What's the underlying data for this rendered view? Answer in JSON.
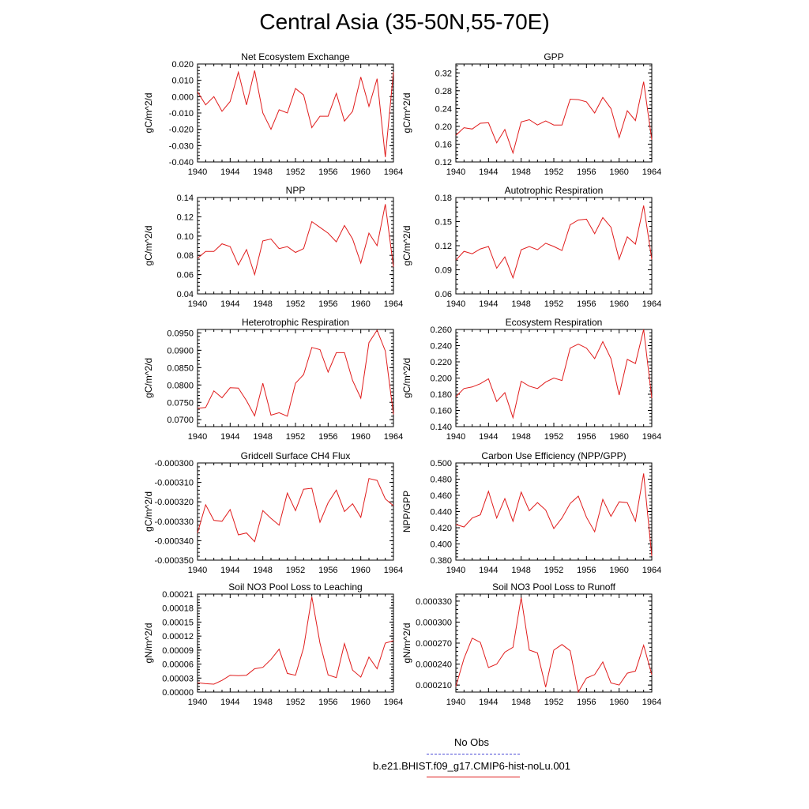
{
  "title": "Central Asia (35-50N,55-70E)",
  "legend": {
    "noobs_label": "No Obs",
    "run_label": "b.e21.BHIST.f09_g17.CMIP6-hist-noLu.001",
    "noobs_color": "#4b4bd6",
    "run_color": "#e01c1c"
  },
  "chart_data": [
    {
      "type": "line",
      "title": "Net Ecosystem Exchange",
      "ylabel": "gC/m^2/d",
      "xlabel": "",
      "xlim": [
        1940,
        1964
      ],
      "ylim": [
        -0.04,
        0.02
      ],
      "xticks": [
        "1940",
        "1944",
        "1948",
        "1952",
        "1956",
        "1960",
        "1964"
      ],
      "yticks": [
        "-0.040",
        "-0.030",
        "-0.020",
        "-0.010",
        "0.000",
        "0.010",
        "0.020"
      ],
      "series": [
        {
          "color": "#e01c1c",
          "x": [
            1940,
            1941,
            1942,
            1943,
            1944,
            1945,
            1946,
            1947,
            1948,
            1949,
            1950,
            1951,
            1952,
            1953,
            1954,
            1955,
            1956,
            1957,
            1958,
            1959,
            1960,
            1961,
            1962,
            1963,
            1964
          ],
          "values": [
            0.003,
            -0.005,
            0.0,
            -0.009,
            -0.003,
            0.015,
            -0.005,
            0.016,
            -0.01,
            -0.02,
            -0.008,
            -0.01,
            0.005,
            0.001,
            -0.019,
            -0.012,
            -0.012,
            0.002,
            -0.015,
            -0.009,
            0.012,
            -0.006,
            0.011,
            -0.037,
            0.015
          ]
        }
      ]
    },
    {
      "type": "line",
      "title": "GPP",
      "ylabel": "gC/m^2/d",
      "xlabel": "",
      "xlim": [
        1940,
        1964
      ],
      "ylim": [
        0.12,
        0.34
      ],
      "xticks": [
        "1940",
        "1944",
        "1948",
        "1952",
        "1956",
        "1960",
        "1964"
      ],
      "yticks": [
        "0.12",
        "0.16",
        "0.20",
        "0.24",
        "0.28",
        "0.32"
      ],
      "series": [
        {
          "color": "#e01c1c",
          "x": [
            1940,
            1941,
            1942,
            1943,
            1944,
            1945,
            1946,
            1947,
            1948,
            1949,
            1950,
            1951,
            1952,
            1953,
            1954,
            1955,
            1956,
            1957,
            1958,
            1959,
            1960,
            1961,
            1962,
            1963,
            1964
          ],
          "values": [
            0.18,
            0.197,
            0.194,
            0.207,
            0.208,
            0.163,
            0.193,
            0.14,
            0.21,
            0.215,
            0.203,
            0.212,
            0.203,
            0.203,
            0.261,
            0.26,
            0.255,
            0.23,
            0.265,
            0.24,
            0.175,
            0.235,
            0.213,
            0.3,
            0.17
          ]
        }
      ]
    },
    {
      "type": "line",
      "title": "NPP",
      "ylabel": "gC/m^2/d",
      "xlabel": "",
      "xlim": [
        1940,
        1964
      ],
      "ylim": [
        0.04,
        0.14
      ],
      "xticks": [
        "1940",
        "1944",
        "1948",
        "1952",
        "1956",
        "1960",
        "1964"
      ],
      "yticks": [
        "0.04",
        "0.06",
        "0.08",
        "0.10",
        "0.12",
        "0.14"
      ],
      "series": [
        {
          "color": "#e01c1c",
          "x": [
            1940,
            1941,
            1942,
            1943,
            1944,
            1945,
            1946,
            1947,
            1948,
            1949,
            1950,
            1951,
            1952,
            1953,
            1954,
            1955,
            1956,
            1957,
            1958,
            1959,
            1960,
            1961,
            1962,
            1963,
            1964
          ],
          "values": [
            0.077,
            0.084,
            0.084,
            0.092,
            0.089,
            0.07,
            0.086,
            0.06,
            0.095,
            0.097,
            0.087,
            0.089,
            0.083,
            0.087,
            0.115,
            0.109,
            0.103,
            0.094,
            0.111,
            0.097,
            0.072,
            0.103,
            0.09,
            0.133,
            0.068
          ]
        }
      ]
    },
    {
      "type": "line",
      "title": "Autotrophic Respiration",
      "ylabel": "gC/m^2/d",
      "xlabel": "",
      "xlim": [
        1940,
        1964
      ],
      "ylim": [
        0.06,
        0.18
      ],
      "xticks": [
        "1940",
        "1944",
        "1948",
        "1952",
        "1956",
        "1960",
        "1964"
      ],
      "yticks": [
        "0.06",
        "0.09",
        "0.12",
        "0.15",
        "0.18"
      ],
      "series": [
        {
          "color": "#e01c1c",
          "x": [
            1940,
            1941,
            1942,
            1943,
            1944,
            1945,
            1946,
            1947,
            1948,
            1949,
            1950,
            1951,
            1952,
            1953,
            1954,
            1955,
            1956,
            1957,
            1958,
            1959,
            1960,
            1961,
            1962,
            1963,
            1964
          ],
          "values": [
            0.102,
            0.113,
            0.11,
            0.116,
            0.119,
            0.092,
            0.106,
            0.08,
            0.115,
            0.119,
            0.115,
            0.123,
            0.119,
            0.114,
            0.146,
            0.152,
            0.153,
            0.135,
            0.155,
            0.143,
            0.103,
            0.131,
            0.122,
            0.17,
            0.103
          ]
        }
      ]
    },
    {
      "type": "line",
      "title": "Heterotrophic Respiration",
      "ylabel": "gC/m^2/d",
      "xlabel": "",
      "xlim": [
        1940,
        1964
      ],
      "ylim": [
        0.068,
        0.096
      ],
      "xticks": [
        "1940",
        "1944",
        "1948",
        "1952",
        "1956",
        "1960",
        "1964"
      ],
      "yticks": [
        "0.0700",
        "0.0750",
        "0.0800",
        "0.0850",
        "0.0900",
        "0.0950"
      ],
      "series": [
        {
          "color": "#e01c1c",
          "x": [
            1940,
            1941,
            1942,
            1943,
            1944,
            1945,
            1946,
            1947,
            1948,
            1949,
            1950,
            1951,
            1952,
            1953,
            1954,
            1955,
            1956,
            1957,
            1958,
            1959,
            1960,
            1961,
            1962,
            1963,
            1964
          ],
          "values": [
            0.0733,
            0.0735,
            0.0783,
            0.0763,
            0.0792,
            0.0791,
            0.0755,
            0.0711,
            0.0805,
            0.0713,
            0.072,
            0.071,
            0.0805,
            0.083,
            0.0908,
            0.0902,
            0.0837,
            0.0893,
            0.0893,
            0.0813,
            0.0762,
            0.0922,
            0.0958,
            0.0898,
            0.0715
          ]
        }
      ]
    },
    {
      "type": "line",
      "title": "Ecosystem Respiration",
      "ylabel": "gC/m^2/d",
      "xlabel": "",
      "xlim": [
        1940,
        1964
      ],
      "ylim": [
        0.14,
        0.26
      ],
      "xticks": [
        "1940",
        "1944",
        "1948",
        "1952",
        "1956",
        "1960",
        "1964"
      ],
      "yticks": [
        "0.140",
        "0.160",
        "0.180",
        "0.200",
        "0.220",
        "0.240",
        "0.260"
      ],
      "series": [
        {
          "color": "#e01c1c",
          "x": [
            1940,
            1941,
            1942,
            1943,
            1944,
            1945,
            1946,
            1947,
            1948,
            1949,
            1950,
            1951,
            1952,
            1953,
            1954,
            1955,
            1956,
            1957,
            1958,
            1959,
            1960,
            1961,
            1962,
            1963,
            1964
          ],
          "values": [
            0.177,
            0.187,
            0.189,
            0.193,
            0.199,
            0.171,
            0.182,
            0.151,
            0.196,
            0.19,
            0.187,
            0.195,
            0.2,
            0.197,
            0.237,
            0.242,
            0.237,
            0.224,
            0.245,
            0.224,
            0.179,
            0.223,
            0.218,
            0.26,
            0.175
          ]
        }
      ]
    },
    {
      "type": "line",
      "title": "Gridcell Surface CH4 Flux",
      "ylabel": "gC/m^2/d",
      "xlabel": "",
      "xlim": [
        1940,
        1964
      ],
      "ylim": [
        -0.00035,
        -0.0003
      ],
      "xticks": [
        "1940",
        "1944",
        "1948",
        "1952",
        "1956",
        "1960",
        "1964"
      ],
      "yticks": [
        "-0.000350",
        "-0.000340",
        "-0.000330",
        "-0.000320",
        "-0.000310",
        "-0.000300"
      ],
      "series": [
        {
          "color": "#e01c1c",
          "x": [
            1940,
            1941,
            1942,
            1943,
            1944,
            1945,
            1946,
            1947,
            1948,
            1949,
            1950,
            1951,
            1952,
            1953,
            1954,
            1955,
            1956,
            1957,
            1958,
            1959,
            1960,
            1961,
            1962,
            1963,
            1964
          ],
          "values": [
            -0.000336,
            -0.0003215,
            -0.0003295,
            -0.00033,
            -0.000324,
            -0.000337,
            -0.000336,
            -0.0003405,
            -0.0003245,
            -0.0003285,
            -0.000332,
            -0.0003155,
            -0.0003245,
            -0.0003135,
            -0.000313,
            -0.0003305,
            -0.0003205,
            -0.000314,
            -0.000325,
            -0.000321,
            -0.000328,
            -0.000308,
            -0.000309,
            -0.0003185,
            -0.000322
          ]
        }
      ]
    },
    {
      "type": "line",
      "title": "Carbon Use Efficiency (NPP/GPP)",
      "ylabel": "NPP/GPP",
      "xlabel": "",
      "xlim": [
        1940,
        1964
      ],
      "ylim": [
        0.38,
        0.5
      ],
      "xticks": [
        "1940",
        "1944",
        "1948",
        "1952",
        "1956",
        "1960",
        "1964"
      ],
      "yticks": [
        "0.380",
        "0.400",
        "0.420",
        "0.440",
        "0.460",
        "0.480",
        "0.500"
      ],
      "series": [
        {
          "color": "#e01c1c",
          "x": [
            1940,
            1941,
            1942,
            1943,
            1944,
            1945,
            1946,
            1947,
            1948,
            1949,
            1950,
            1951,
            1952,
            1953,
            1954,
            1955,
            1956,
            1957,
            1958,
            1959,
            1960,
            1961,
            1962,
            1963,
            1964
          ],
          "values": [
            0.424,
            0.421,
            0.432,
            0.436,
            0.465,
            0.432,
            0.456,
            0.428,
            0.464,
            0.441,
            0.451,
            0.442,
            0.419,
            0.432,
            0.45,
            0.459,
            0.433,
            0.415,
            0.455,
            0.434,
            0.452,
            0.451,
            0.428,
            0.487,
            0.385
          ]
        }
      ]
    },
    {
      "type": "line",
      "title": "Soil NO3 Pool Loss to Leaching",
      "ylabel": "gN/m^2/d",
      "xlabel": "",
      "xlim": [
        1940,
        1964
      ],
      "ylim": [
        0.0,
        0.00021
      ],
      "xticks": [
        "1940",
        "1944",
        "1948",
        "1952",
        "1956",
        "1960",
        "1964"
      ],
      "yticks": [
        "0.00000",
        "0.00003",
        "0.00006",
        "0.00009",
        "0.00012",
        "0.00015",
        "0.00018",
        "0.00021"
      ],
      "series": [
        {
          "color": "#e01c1c",
          "x": [
            1940,
            1941,
            1942,
            1943,
            1944,
            1945,
            1946,
            1947,
            1948,
            1949,
            1950,
            1951,
            1952,
            1953,
            1954,
            1955,
            1956,
            1957,
            1958,
            1959,
            1960,
            1961,
            1962,
            1963,
            1964
          ],
          "values": [
            2e-05,
            1.8e-05,
            1.7e-05,
            2.5e-05,
            3.6e-05,
            3.5e-05,
            3.6e-05,
            5e-05,
            5.3e-05,
            7e-05,
            9.2e-05,
            4e-05,
            3.6e-05,
            9.5e-05,
            0.000204,
            0.000105,
            3.7e-05,
            3.1e-05,
            0.000104,
            4.7e-05,
            3.2e-05,
            7.5e-05,
            5e-05,
            0.000105,
            0.00011
          ]
        }
      ]
    },
    {
      "type": "line",
      "title": "Soil NO3 Pool Loss to Runoff",
      "ylabel": "gN/m^2/d",
      "xlabel": "",
      "xlim": [
        1940,
        1964
      ],
      "ylim": [
        0.0002,
        0.00034
      ],
      "xticks": [
        "1940",
        "1944",
        "1948",
        "1952",
        "1956",
        "1960",
        "1964"
      ],
      "yticks": [
        "0.000210",
        "0.000240",
        "0.000270",
        "0.000300",
        "0.000330"
      ],
      "series": [
        {
          "color": "#e01c1c",
          "x": [
            1940,
            1941,
            1942,
            1943,
            1944,
            1945,
            1946,
            1947,
            1948,
            1949,
            1950,
            1951,
            1952,
            1953,
            1954,
            1955,
            1956,
            1957,
            1958,
            1959,
            1960,
            1961,
            1962,
            1963,
            1964
          ],
          "values": [
            0.000208,
            0.000248,
            0.000277,
            0.000271,
            0.000235,
            0.00024,
            0.000257,
            0.000264,
            0.000335,
            0.00026,
            0.000256,
            0.000207,
            0.00026,
            0.000268,
            0.000259,
            0.0002,
            0.00022,
            0.000225,
            0.000243,
            0.000213,
            0.00021,
            0.000227,
            0.00023,
            0.000267,
            0.000225
          ]
        }
      ]
    }
  ]
}
